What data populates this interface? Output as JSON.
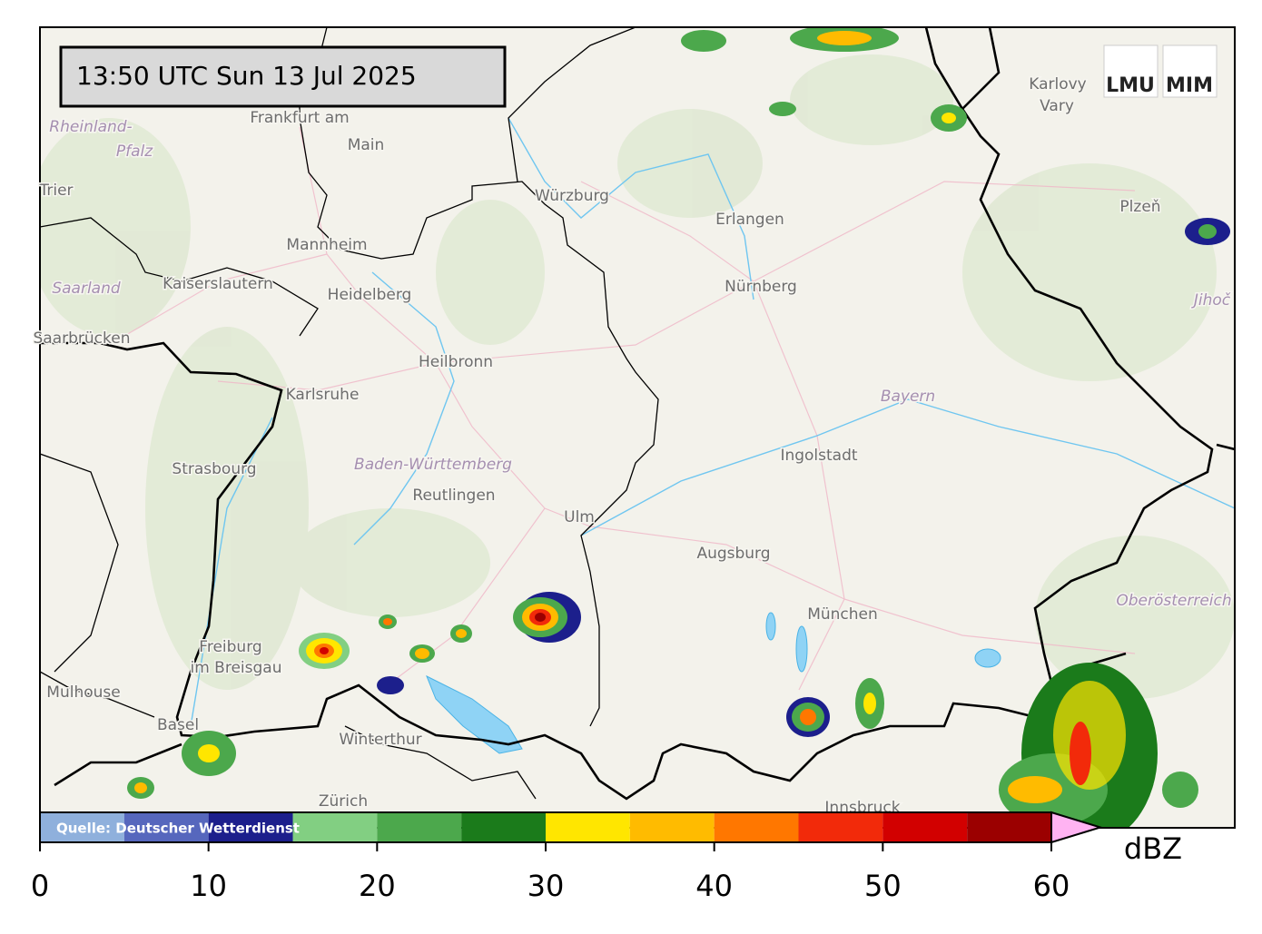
{
  "timestamp": "13:50 UTC  Sun 13 Jul 2025",
  "logos": [
    "LMU",
    "MIM"
  ],
  "places": [
    "Frankfurt am",
    "Main",
    "Rheinland-",
    "Pfalz",
    "Trier",
    "Mannheim",
    "Kaiserslautern",
    "Heidelberg",
    "Saarland",
    "Saarbrücken",
    "Würzburg",
    "Erlangen",
    "Nürnberg",
    "Heilbronn",
    "Karlsruhe",
    "Strasbourg",
    "Baden-Württemberg",
    "Reutlingen",
    "Ulm",
    "Ingolstadt",
    "Bayern",
    "Augsburg",
    "München",
    "Oberösterreich",
    "Freiburg",
    "im Breisgau",
    "Mulhouse",
    "Basel",
    "Winterthur",
    "Zürich",
    "Karlovy",
    "Vary",
    "Plzeň",
    "Jihoč",
    "Innsbruck"
  ],
  "colorbar": {
    "source": "Quelle: Deutscher Wetterdienst",
    "unit": "dBZ",
    "lim": [
      0,
      60
    ],
    "bounds": [
      0,
      5,
      10,
      15,
      20,
      25,
      30,
      35,
      40,
      45,
      50,
      55,
      60
    ],
    "colors": [
      "#8fb0dc",
      "#5667bd",
      "#1c1f8c",
      "#82cf82",
      "#4ca84c",
      "#1b7b1b",
      "#ffe600",
      "#ffbb00",
      "#ff7700",
      "#f22a0a",
      "#d20000",
      "#9b0000"
    ],
    "extend_color": "#ffb3f2",
    "ticks": [
      0,
      10,
      20,
      30,
      40,
      50,
      60
    ]
  }
}
